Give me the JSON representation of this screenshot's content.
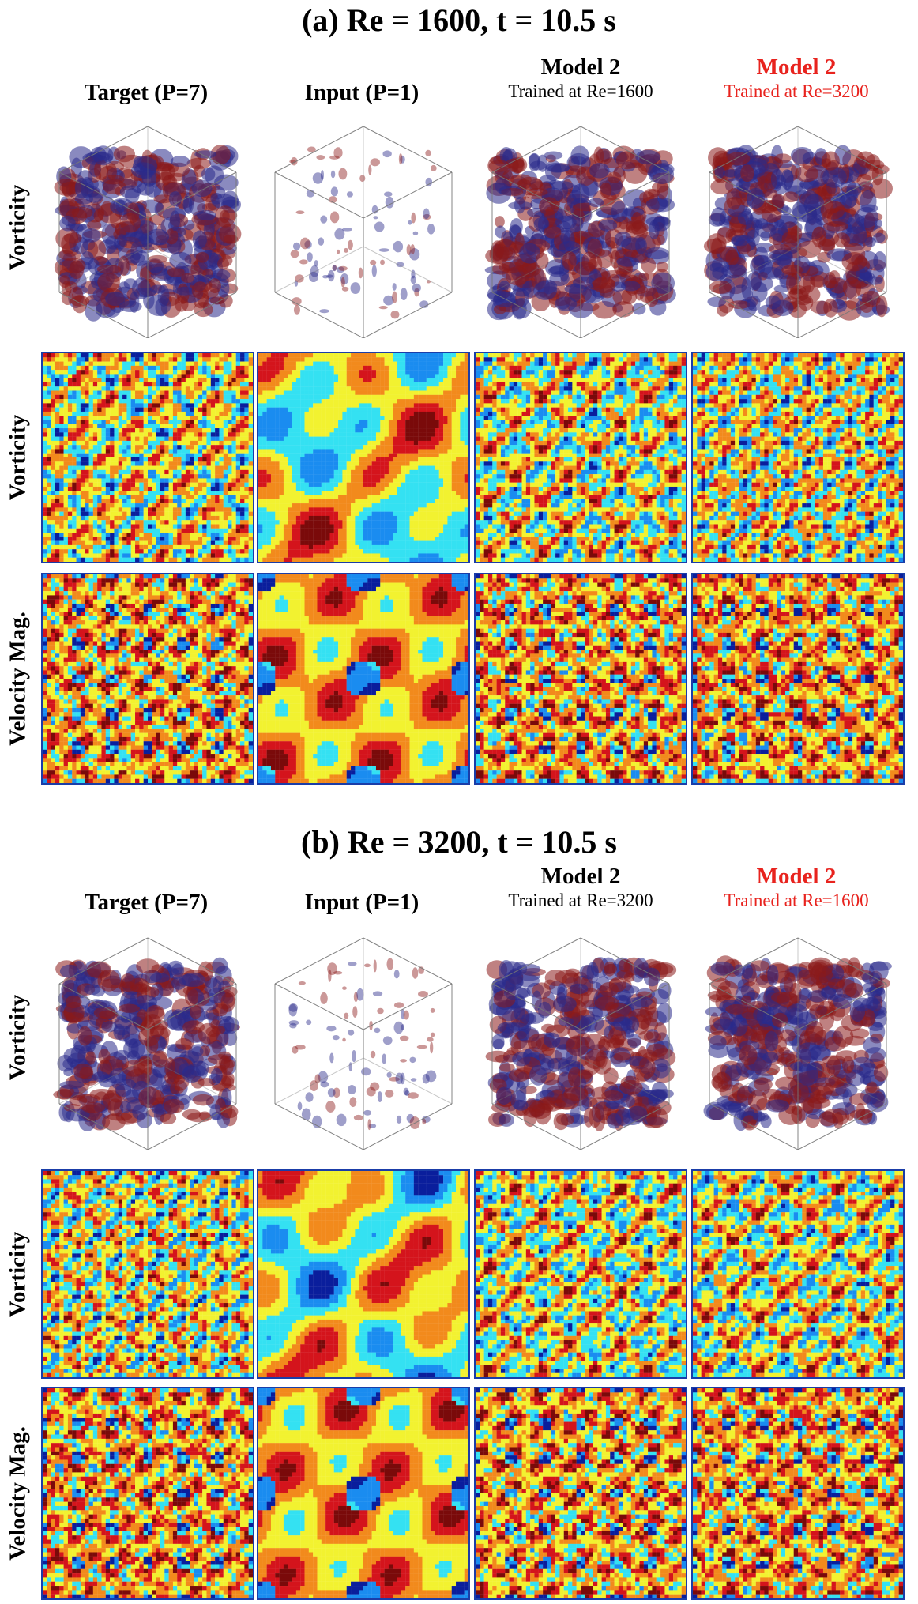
{
  "sections": [
    {
      "title": "(a) Re = 1600, t = 10.5 s",
      "columns": [
        {
          "line1": "Target (P=7)",
          "line2": ""
        },
        {
          "line1": "Input (P=1)",
          "line2": ""
        },
        {
          "line1": "Model 2",
          "line2": "Trained at Re=1600"
        },
        {
          "line1": "Model 2",
          "line2": "Trained at Re=3200"
        }
      ],
      "rows": [
        "Vorticity",
        "Vorticity",
        "Velocity Mag."
      ]
    },
    {
      "title": "(b) Re = 3200, t = 10.5 s",
      "columns": [
        {
          "line1": "Target (P=7)",
          "line2": ""
        },
        {
          "line1": "Input (P=1)",
          "line2": ""
        },
        {
          "line1": "Model 2",
          "line2": "Trained at Re=3200"
        },
        {
          "line1": "Model 2",
          "line2": "Trained at Re=1600"
        }
      ],
      "rows": [
        "Vorticity",
        "Vorticity",
        "Velocity Mag."
      ]
    }
  ],
  "colors": {
    "highlight": "#e8231e",
    "panel_border": "#1a3da8",
    "jet": [
      "#0a1e9c",
      "#1a8cf0",
      "#34e1f2",
      "#f2f230",
      "#f28a1c",
      "#d4141c",
      "#7a0a0a"
    ],
    "vort_pos": "#8b1a1a",
    "vort_neg": "#2a2a8a"
  }
}
